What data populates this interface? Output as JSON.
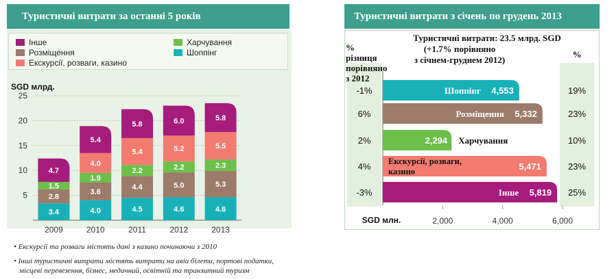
{
  "left": {
    "title": "Туристичні витрати за останні 5 років",
    "ylabel": "SGD млрд.",
    "legend": [
      {
        "label": "Інше",
        "color": "#a61c7c"
      },
      {
        "label": "Харчування",
        "color": "#6cc04a"
      },
      {
        "label": "Розміщення",
        "color": "#9c7b6a"
      },
      {
        "label": "Шоппінг",
        "color": "#19b1b9"
      },
      {
        "label": "Екскурсії, розваги, казино",
        "color": "#f37b70"
      }
    ]
  },
  "right": {
    "title": "Туристичні витрати з січень по грудень 2013",
    "total_line1": "Туристичні   витрати:  23.5 млрд. SGD",
    "total_line2": "(+1.7% порівняно",
    "total_line3": "з січнем-груднем  2012)",
    "left_col_header": [
      "% різниця",
      "порівняно",
      "з 2012"
    ],
    "right_col_header": "%",
    "xlabel": "SGD млн."
  },
  "notes": [
    "Екскурсії та розваги містять дані з казино починаючи з 2010",
    "Інші туристичні витрати містять витрати на авіа білети, портові податки,",
    "місцеві перевезення, бізнес, медичний, освітній та транзитний туризм"
  ],
  "chart_data": [
    {
      "type": "bar",
      "stacked": true,
      "title": "Туристичні витрати за останні 5 років",
      "ylabel": "SGD млрд.",
      "categories": [
        "2009",
        "2010",
        "2011",
        "2012",
        "2013"
      ],
      "ylim": [
        0,
        25
      ],
      "yticks": [
        5,
        10,
        15,
        20,
        25
      ],
      "series": [
        {
          "name": "Шоппінг",
          "color": "#19b1b9",
          "values": [
            3.4,
            4.0,
            4.5,
            4.6,
            4.6
          ]
        },
        {
          "name": "Розміщення",
          "color": "#9c7b6a",
          "values": [
            2.8,
            3.6,
            4.4,
            5.0,
            5.3
          ]
        },
        {
          "name": "Харчування",
          "color": "#6cc04a",
          "values": [
            1.5,
            1.9,
            2.2,
            2.2,
            2.3
          ]
        },
        {
          "name": "Екскурсії, розваги, казино",
          "color": "#f37b70",
          "values": [
            0,
            4.0,
            5.4,
            5.2,
            5.5
          ]
        },
        {
          "name": "Інше",
          "color": "#a61c7c",
          "values": [
            4.7,
            5.4,
            5.8,
            6.0,
            5.8
          ]
        }
      ]
    },
    {
      "type": "bar",
      "orientation": "horizontal",
      "title": "Туристичні витрати з січень по грудень 2013",
      "xlabel": "SGD млн.",
      "xlim": [
        0,
        6000
      ],
      "xticks": [
        "2,000",
        "4,000",
        "6,000"
      ],
      "xtick_values": [
        2000,
        4000,
        6000
      ],
      "categories": [
        "Шоппінг",
        "Розміщення",
        "Харчування",
        "Екскурсії, розваги, казино",
        "Інше"
      ],
      "values": [
        4553,
        5332,
        2294,
        5471,
        5819
      ],
      "value_labels": [
        "4,553",
        "5,332",
        "2,294",
        "5,471",
        "5,819"
      ],
      "colors": [
        "#19b1b9",
        "#9c7b6a",
        "#6cc04a",
        "#f37b70",
        "#a61c7c"
      ],
      "change_vs_2012": [
        "-1%",
        "6%",
        "2%",
        "4%",
        "-3%"
      ],
      "share": [
        "19%",
        "23%",
        "10%",
        "23%",
        "25%"
      ]
    }
  ]
}
